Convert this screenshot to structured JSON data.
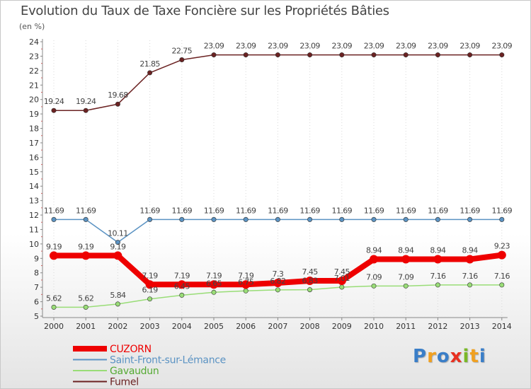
{
  "title": "Evolution du Taux de Taxe Foncière sur les Propriétés Bâties",
  "unit_label": "(en %)",
  "logo": {
    "letters": [
      "P",
      "r",
      "o",
      "x",
      "i",
      "t",
      "i"
    ],
    "colors": [
      "#3a7ec8",
      "#f0a020",
      "#3a7ec8",
      "#e83020",
      "#7ab828",
      "#f0a020",
      "#3a7ec8"
    ]
  },
  "chart_data": {
    "type": "line",
    "title": "Evolution du Taux de Taxe Foncière sur les Propriétés Bâties",
    "ylabel": "(en %)",
    "xlabel": "",
    "ylim": [
      5,
      24
    ],
    "yticks": [
      5,
      6,
      7,
      8,
      9,
      10,
      11,
      12,
      13,
      14,
      15,
      16,
      17,
      18,
      19,
      20,
      21,
      22,
      23,
      24
    ],
    "x": [
      "2000",
      "2001",
      "2002",
      "2003",
      "2004",
      "2005",
      "2006",
      "2007",
      "2008",
      "2009",
      "2010",
      "2011",
      "2012",
      "2013",
      "2014"
    ],
    "series": [
      {
        "name": "Fumel",
        "color": "#6b2222",
        "width": 1.5,
        "values": [
          19.24,
          19.24,
          19.68,
          21.85,
          22.75,
          23.09,
          23.09,
          23.09,
          23.09,
          23.09,
          23.09,
          23.09,
          23.09,
          23.09,
          23.09
        ],
        "labels": [
          "19.24",
          "19.24",
          "19.68",
          "21.85",
          "22.75",
          "23.09",
          "23.09",
          "23.09",
          "23.09",
          "23.09",
          "23.09",
          "23.09",
          "23.09",
          "23.09",
          "23.09"
        ]
      },
      {
        "name": "Saint-Front-sur-Lémance",
        "color": "#5b93c3",
        "width": 1.5,
        "values": [
          11.69,
          11.69,
          10.11,
          11.69,
          11.69,
          11.69,
          11.69,
          11.69,
          11.69,
          11.69,
          11.69,
          11.69,
          11.69,
          11.69,
          11.69
        ],
        "labels": [
          "11.69",
          "11.69",
          "10.11",
          "11.69",
          "11.69",
          "11.69",
          "11.69",
          "11.69",
          "11.69",
          "11.69",
          "11.69",
          "11.69",
          "11.69",
          "11.69",
          "11.69"
        ]
      },
      {
        "name": "Gavaudun",
        "color": "#99dd77",
        "width": 1.5,
        "values": [
          5.62,
          5.62,
          5.84,
          6.19,
          6.45,
          6.65,
          6.75,
          6.82,
          6.83,
          7.01,
          7.09,
          7.09,
          7.16,
          7.16,
          7.16
        ],
        "labels": [
          "5.62",
          "5.62",
          "5.84",
          "6.19",
          "6.45",
          "6.65",
          "6.75",
          "6.82",
          "6.83",
          "7.01",
          "7.09",
          "7.09",
          "7.16",
          "7.16",
          "7.16"
        ]
      },
      {
        "name": "CUZORN",
        "color": "#ee0000",
        "width": 8,
        "values": [
          9.19,
          9.19,
          9.19,
          7.19,
          7.19,
          7.19,
          7.19,
          7.3,
          7.45,
          7.45,
          8.94,
          8.94,
          8.94,
          8.94,
          9.23
        ],
        "labels": [
          "9.19",
          "9.19",
          "9.19",
          "7.19",
          "7.19",
          "7.19",
          "7.19",
          "7.3",
          "7.45",
          "7.45",
          "8.94",
          "8.94",
          "8.94",
          "8.94",
          "9.23"
        ]
      }
    ],
    "legend": {
      "position": "bottom-left",
      "order": [
        "CUZORN",
        "Saint-Front-sur-Lémance",
        "Gavaudun",
        "Fumel"
      ]
    }
  }
}
